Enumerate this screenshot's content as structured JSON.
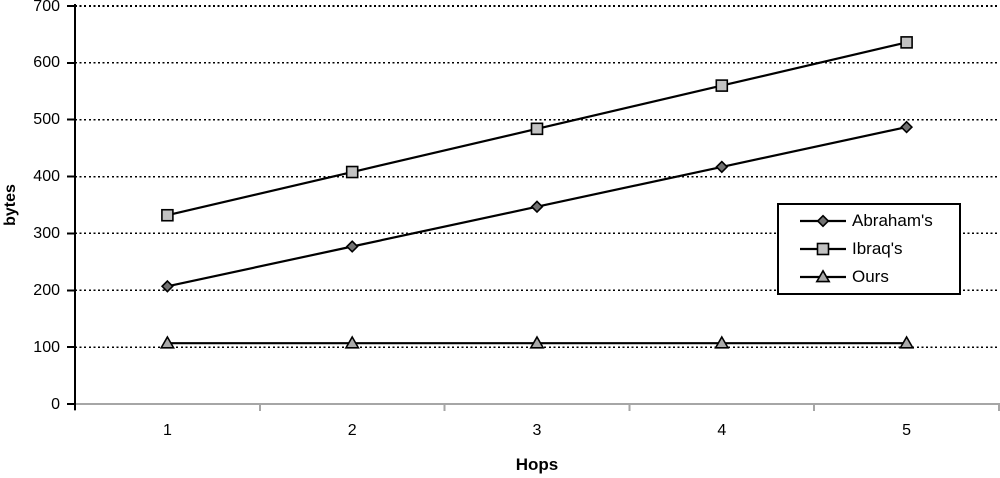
{
  "chart_data": {
    "type": "line",
    "title": "",
    "xlabel": "Hops",
    "ylabel": "bytes",
    "x": [
      1,
      2,
      3,
      4,
      5
    ],
    "xtick_labels": [
      "1",
      "2",
      "3",
      "4",
      "5"
    ],
    "yticks": [
      0,
      100,
      200,
      300,
      400,
      500,
      600,
      700
    ],
    "ylim": [
      0,
      700
    ],
    "grid": "horizontal-dotted",
    "grid_color": "#000000",
    "legend_position": "middle-right",
    "background_color": "#ffffff",
    "line_color": "#000000",
    "y_axis_color": "#000000",
    "x_axis_color": "#a6a6a6",
    "series": [
      {
        "name": "Abraham's",
        "marker": "diamond",
        "marker_fill": "#737373",
        "values": [
          207,
          277,
          347,
          417,
          487
        ]
      },
      {
        "name": "Ibraq's",
        "marker": "square",
        "marker_fill": "#c2c2c2",
        "values": [
          332,
          408,
          484,
          560,
          636
        ]
      },
      {
        "name": "Ours",
        "marker": "triangle",
        "marker_fill": "#a9a9a9",
        "values": [
          107,
          107,
          107,
          107,
          107
        ]
      }
    ]
  }
}
